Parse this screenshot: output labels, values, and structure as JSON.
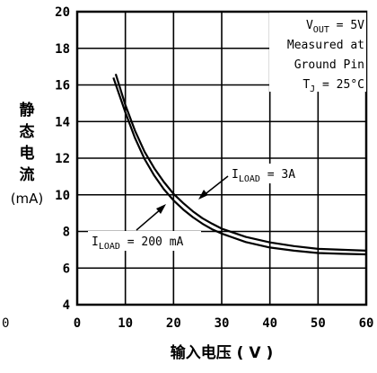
{
  "chart_data": {
    "type": "line",
    "title": "",
    "xlabel": "输入电压 ( V )",
    "ylabel_chars": [
      "静",
      "态",
      "电",
      "流"
    ],
    "ylabel_unit": "(mA)",
    "xlim": [
      0,
      60
    ],
    "ylim": [
      4,
      20
    ],
    "x_ticks": [
      0,
      10,
      20,
      30,
      40,
      50,
      60
    ],
    "y_ticks": [
      4,
      6,
      8,
      10,
      12,
      14,
      16,
      18,
      20
    ],
    "grid": true,
    "stray_label": "0",
    "conditions": {
      "line1_main": "V",
      "line1_sub": "OUT",
      "line1_rest": " = 5V",
      "line2": "Measured at",
      "line3": "Ground Pin",
      "line4_main": "T",
      "line4_sub": "J",
      "line4_rest": " = 25°C"
    },
    "series": [
      {
        "label_main": "I",
        "label_sub": "LOAD",
        "label_rest": " = 3A",
        "x": [
          8,
          10,
          12,
          14,
          16,
          18,
          20,
          22,
          24,
          26,
          28,
          30,
          35,
          40,
          45,
          50,
          55,
          60
        ],
        "y": [
          16.6,
          14.9,
          13.5,
          12.35,
          11.45,
          10.7,
          10.05,
          9.55,
          9.1,
          8.72,
          8.42,
          8.15,
          7.7,
          7.4,
          7.2,
          7.05,
          7.0,
          6.95
        ]
      },
      {
        "label_main": "I",
        "label_sub": "LOAD",
        "label_rest": " = 200 mA",
        "x": [
          7.5,
          10,
          12,
          14,
          16,
          18,
          20,
          22,
          24,
          26,
          28,
          30,
          35,
          40,
          45,
          50,
          55,
          60
        ],
        "y": [
          16.4,
          14.5,
          13.1,
          11.95,
          11.05,
          10.3,
          9.7,
          9.2,
          8.78,
          8.42,
          8.12,
          7.88,
          7.42,
          7.12,
          6.95,
          6.82,
          6.78,
          6.75
        ]
      }
    ]
  }
}
